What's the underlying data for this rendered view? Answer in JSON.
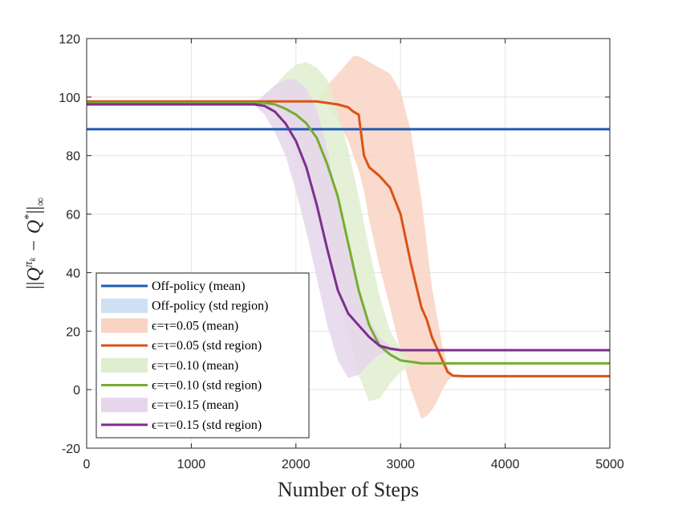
{
  "chart_data": {
    "type": "line",
    "title": "",
    "xlabel": "Number of Steps",
    "ylabel": "||Q^{π_k} − Q*||∞",
    "ylabel_parts": {
      "q1": "Q",
      "sup1": "π",
      "subsup": "k",
      "minus": "−",
      "q2": "Q",
      "star": "*",
      "sub": "∞"
    },
    "xlim": [
      0,
      5000
    ],
    "ylim": [
      -20,
      120
    ],
    "xticks": [
      0,
      1000,
      2000,
      3000,
      4000,
      5000
    ],
    "xtick_labels": [
      "0",
      "1000",
      "2000",
      "3000",
      "4000",
      "5000"
    ],
    "yticks": [
      -20,
      0,
      20,
      40,
      60,
      80,
      100,
      120
    ],
    "ytick_labels": [
      "-20",
      "0",
      "20",
      "40",
      "60",
      "80",
      "100",
      "120"
    ],
    "grid": true,
    "legend_position": "bottom-left",
    "legend": [
      {
        "label": "Off-policy (mean)",
        "kind": "line",
        "color": "#1f5bb5"
      },
      {
        "label": "Off-policy (std region)",
        "kind": "band",
        "color": "#cfe0f5"
      },
      {
        "label": "ϵ=τ=0.05 (mean)",
        "kind": "band",
        "color": "#f9d3c3"
      },
      {
        "label": "ϵ=τ=0.05 (std region)",
        "kind": "line",
        "color": "#d95319"
      },
      {
        "label": "ϵ=τ=0.10 (mean)",
        "kind": "band",
        "color": "#dfeed0"
      },
      {
        "label": "ϵ=τ=0.10 (std region)",
        "kind": "line",
        "color": "#77ac30"
      },
      {
        "label": "ϵ=τ=0.15 (mean)",
        "kind": "band",
        "color": "#e6d6ec"
      },
      {
        "label": "ϵ=τ=0.15 (std region)",
        "kind": "line",
        "color": "#7e2f8e"
      }
    ],
    "series": [
      {
        "name": "Off-policy",
        "color": "#1f5bb5",
        "band_color": "#cfe0f5",
        "x": [
          0,
          5000
        ],
        "mean": [
          89,
          89
        ],
        "upper": [
          89,
          89
        ],
        "lower": [
          89,
          89
        ]
      },
      {
        "name": "ϵ=τ=0.05",
        "color": "#d95319",
        "band_color": "#f9d3c3",
        "x": [
          0,
          2200,
          2300,
          2400,
          2500,
          2550,
          2600,
          2650,
          2700,
          2800,
          2900,
          3000,
          3100,
          3200,
          3250,
          3300,
          3350,
          3400,
          3450,
          3500,
          3600,
          5000
        ],
        "mean": [
          98.5,
          98.5,
          98,
          97.5,
          96.5,
          95,
          94,
          80,
          76,
          73,
          69,
          60,
          43,
          28,
          24,
          18,
          14,
          10,
          6,
          4.8,
          4.6,
          4.6
        ],
        "upper": [
          98.5,
          98.5,
          104,
          108,
          112,
          114,
          114,
          113,
          112,
          110,
          108,
          102,
          88,
          65,
          50,
          35,
          25,
          15,
          8,
          5,
          4.6,
          4.6
        ],
        "lower": [
          98.5,
          98.5,
          97,
          92,
          85,
          80,
          75,
          68,
          58,
          42,
          28,
          13,
          0,
          -10,
          -9,
          -7,
          -4,
          0,
          3,
          4.5,
          4.6,
          4.6
        ]
      },
      {
        "name": "ϵ=τ=0.10",
        "color": "#77ac30",
        "band_color": "#dfeed0",
        "x": [
          0,
          1700,
          1800,
          1900,
          2000,
          2100,
          2200,
          2300,
          2400,
          2500,
          2600,
          2700,
          2800,
          2900,
          3000,
          3100,
          3200,
          5000
        ],
        "mean": [
          98,
          98,
          97.5,
          96,
          94,
          91,
          86,
          77,
          66,
          50,
          34,
          22,
          15,
          12,
          10,
          9.5,
          9,
          9
        ],
        "upper": [
          98,
          98,
          104,
          108,
          111,
          112,
          110,
          106,
          95,
          82,
          66,
          48,
          32,
          20,
          14,
          10,
          9,
          9
        ],
        "lower": [
          98,
          98,
          94,
          88,
          80,
          70,
          58,
          45,
          32,
          18,
          5,
          -4,
          -3,
          2,
          6,
          8,
          9,
          9
        ]
      },
      {
        "name": "ϵ=τ=0.15",
        "color": "#7e2f8e",
        "band_color": "#e6d6ec",
        "x": [
          0,
          1600,
          1700,
          1800,
          1900,
          2000,
          2100,
          2200,
          2300,
          2400,
          2500,
          2600,
          2700,
          2800,
          2900,
          3000,
          5000
        ],
        "mean": [
          97.5,
          97.5,
          97,
          95,
          91,
          85,
          76,
          63,
          48,
          34,
          26,
          22,
          18,
          15,
          14,
          13.5,
          13.5
        ],
        "upper": [
          97.5,
          97.5,
          101,
          104,
          106,
          106,
          103,
          96,
          82,
          65,
          48,
          34,
          24,
          18,
          15,
          14,
          13.5
        ],
        "lower": [
          97.5,
          97.5,
          94,
          88,
          80,
          68,
          54,
          38,
          22,
          10,
          4,
          5,
          9,
          12,
          13,
          13.5,
          13.5
        ]
      }
    ]
  }
}
